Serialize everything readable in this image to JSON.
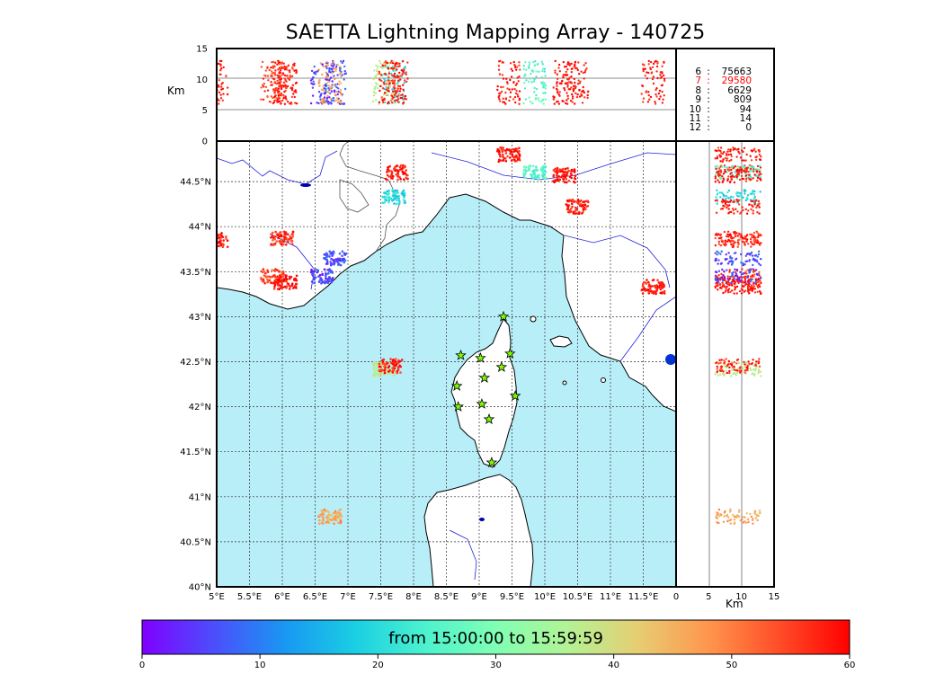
{
  "title": "SAETTA Lightning Mapping Array - 140725",
  "colors": {
    "sea": "#b8eef8",
    "land": "#ffffff",
    "coast": "#000000",
    "rivers": "#2222dd",
    "station": "#7cfc00",
    "highlight": "#ff0000"
  },
  "chart_data": [
    {
      "type": "scatter",
      "name": "map-plan-view",
      "xlabel": "",
      "ylabel": "",
      "xlim": [
        5.0,
        12.0
      ],
      "ylim": [
        40.0,
        44.95
      ],
      "x_ticks": [
        "5°E",
        "5.5°E",
        "6°E",
        "6.5°E",
        "7°E",
        "7.5°E",
        "8°E",
        "8.5°E",
        "9°E",
        "9.5°E",
        "10°E",
        "10.5°E",
        "11°E",
        "11.5°E"
      ],
      "y_ticks": [
        "40°N",
        "40.5°N",
        "41°N",
        "41.5°N",
        "42°N",
        "42.5°N",
        "43°N",
        "43.5°N",
        "44°N",
        "44.5°N"
      ],
      "grid": true,
      "stations": [
        {
          "lon": 9.37,
          "lat": 43.0
        },
        {
          "lon": 8.72,
          "lat": 42.57
        },
        {
          "lon": 9.02,
          "lat": 42.54
        },
        {
          "lon": 9.47,
          "lat": 42.59
        },
        {
          "lon": 9.34,
          "lat": 42.44
        },
        {
          "lon": 9.08,
          "lat": 42.32
        },
        {
          "lon": 8.66,
          "lat": 42.23
        },
        {
          "lon": 9.55,
          "lat": 42.12
        },
        {
          "lon": 8.68,
          "lat": 42.0
        },
        {
          "lon": 9.04,
          "lat": 42.03
        },
        {
          "lon": 9.15,
          "lat": 41.86
        },
        {
          "lon": 9.19,
          "lat": 41.38
        }
      ],
      "clusters": [
        {
          "lon": 5.0,
          "lat": 43.85,
          "t": 58
        },
        {
          "lon": 5.85,
          "lat": 43.45,
          "t": 55
        },
        {
          "lon": 6.05,
          "lat": 43.38,
          "t": 59
        },
        {
          "lon": 6.0,
          "lat": 43.87,
          "t": 56
        },
        {
          "lon": 6.6,
          "lat": 43.45,
          "t": 5
        },
        {
          "lon": 6.8,
          "lat": 43.65,
          "t": 6
        },
        {
          "lon": 7.7,
          "lat": 44.33,
          "t": 20
        },
        {
          "lon": 7.75,
          "lat": 44.6,
          "t": 58
        },
        {
          "lon": 9.45,
          "lat": 44.8,
          "t": 57
        },
        {
          "lon": 9.85,
          "lat": 44.6,
          "t": 25
        },
        {
          "lon": 10.3,
          "lat": 44.57,
          "t": 59
        },
        {
          "lon": 10.5,
          "lat": 44.22,
          "t": 58
        },
        {
          "lon": 11.65,
          "lat": 43.33,
          "t": 58
        },
        {
          "lon": 7.55,
          "lat": 42.42,
          "t": 38
        },
        {
          "lon": 7.65,
          "lat": 42.45,
          "t": 57
        },
        {
          "lon": 6.73,
          "lat": 40.78,
          "t": 47
        }
      ]
    },
    {
      "type": "scatter",
      "name": "altitude-vs-longitude",
      "ylabel": "Km",
      "ylim": [
        0,
        15
      ],
      "y_ticks": [
        "0",
        "5",
        "10",
        "15"
      ]
    },
    {
      "type": "scatter",
      "name": "latitude-vs-altitude",
      "xlabel": "Km",
      "xlim": [
        0,
        15
      ],
      "x_ticks": [
        "0",
        "5",
        "10",
        "15"
      ]
    },
    {
      "type": "colorbar",
      "name": "time-colorbar",
      "vmin": 0,
      "vmax": 60,
      "ticks": [
        "0",
        "10",
        "20",
        "30",
        "40",
        "50",
        "60"
      ],
      "label": "from 15:00:00 to 15:59:59",
      "colormap": [
        "#7f00ff",
        "#4d4dfc",
        "#1996f3",
        "#1acee3",
        "#4cf2ce",
        "#80ffb4",
        "#b2f396",
        "#e6ce73",
        "#ff964d",
        "#ff4d28",
        "#ff0000"
      ]
    }
  ],
  "stats": [
    {
      "level": "6",
      "sep": ":",
      "count": "75663",
      "highlight": false
    },
    {
      "level": "7",
      "sep": ":",
      "count": "29580",
      "highlight": true
    },
    {
      "level": "8",
      "sep": ":",
      "count": "6629",
      "highlight": false
    },
    {
      "level": "9",
      "sep": ":",
      "count": "809",
      "highlight": false
    },
    {
      "level": "10",
      "sep": ":",
      "count": "94",
      "highlight": false
    },
    {
      "level": "11",
      "sep": ":",
      "count": "14",
      "highlight": false
    },
    {
      "level": "12",
      "sep": ":",
      "count": "0",
      "highlight": false
    }
  ]
}
